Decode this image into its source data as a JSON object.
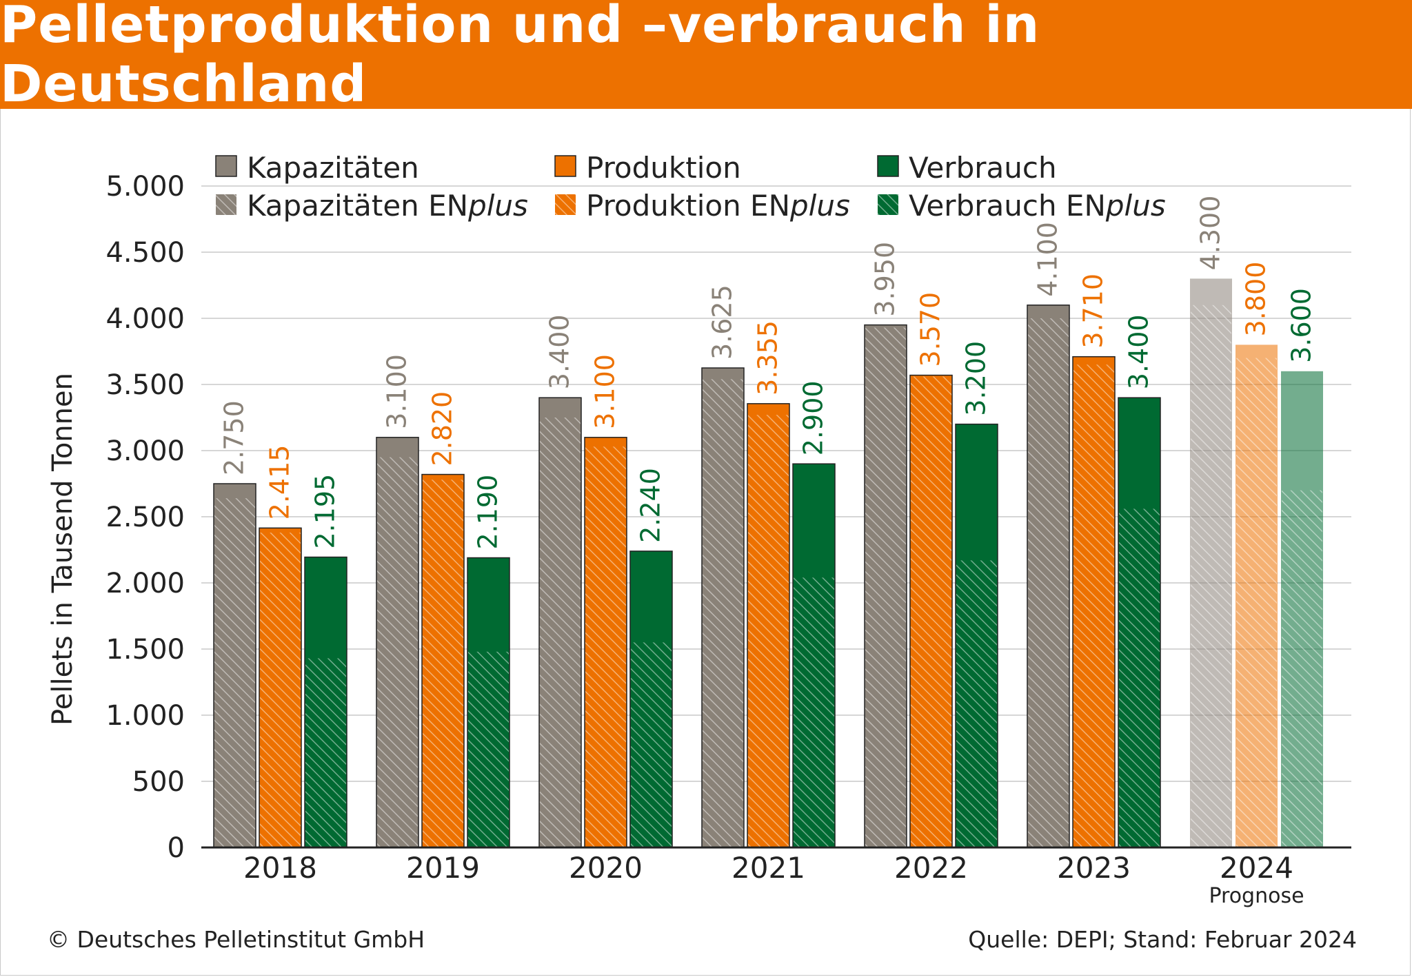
{
  "header": {
    "title": "Pelletproduktion und –verbrauch in Deutschland"
  },
  "footer": {
    "copyright": "© Deutsches Pelletinstitut GmbH",
    "source": "Quelle: DEPI; Stand: Februar 2024"
  },
  "colors": {
    "accent": "#ed7100",
    "kapazitaeten": "#8a8278",
    "produktion": "#ed7100",
    "verbrauch": "#006a32",
    "kapazitaeten_label": "#8a8278",
    "produktion_label": "#ed7100",
    "verbrauch_label": "#006a32"
  },
  "chart_data": {
    "type": "bar",
    "title": "Pelletproduktion und –verbrauch in Deutschland",
    "ylabel": "Pellets in Tausend Tonnen",
    "xlabel": "",
    "ylim": [
      0,
      5000
    ],
    "yticks": [
      0,
      500,
      1000,
      1500,
      2000,
      2500,
      3000,
      3500,
      4000,
      4500,
      5000
    ],
    "ytick_labels": [
      "0",
      "500",
      "1.000",
      "1.500",
      "2.000",
      "2.500",
      "3.000",
      "3.500",
      "4.000",
      "4.500",
      "5.000"
    ],
    "grid": true,
    "legend_position": "top",
    "categories": [
      "2018",
      "2019",
      "2020",
      "2021",
      "2022",
      "2023",
      "2024"
    ],
    "category_sublabels": [
      "",
      "",
      "",
      "",
      "",
      "",
      "Prognose"
    ],
    "forecast_category": "2024",
    "series": [
      {
        "name": "Kapazitäten",
        "enplus_name": "Kapazitäten ENplus",
        "enplus_name_base": "Kapazitäten EN",
        "enplus_name_italic": "plus",
        "values": [
          2750,
          3100,
          3400,
          3625,
          3950,
          4100,
          4300
        ],
        "labels": [
          "2.750",
          "3.100",
          "3.400",
          "3.625",
          "3.950",
          "4.100",
          "4.300"
        ],
        "enplus_values": [
          2640,
          2950,
          3250,
          3540,
          3930,
          4000,
          4100
        ]
      },
      {
        "name": "Produktion",
        "enplus_name": "Produktion ENplus",
        "enplus_name_base": "Produktion EN",
        "enplus_name_italic": "plus",
        "values": [
          2415,
          2820,
          3100,
          3355,
          3570,
          3710,
          3800
        ],
        "labels": [
          "2.415",
          "2.820",
          "3.100",
          "3.355",
          "3.570",
          "3.710",
          "3.800"
        ],
        "enplus_values": [
          2380,
          2780,
          3030,
          3270,
          3560,
          3650,
          3700
        ]
      },
      {
        "name": "Verbrauch",
        "enplus_name": "Verbrauch ENplus",
        "enplus_name_base": "Verbrauch EN",
        "enplus_name_italic": "plus",
        "values": [
          2195,
          2190,
          2240,
          2900,
          3200,
          3400,
          3600
        ],
        "labels": [
          "2.195",
          "2.190",
          "2.240",
          "2.900",
          "3.200",
          "3.400",
          "3.600"
        ],
        "enplus_values": [
          1430,
          1480,
          1550,
          2040,
          2170,
          2560,
          2700
        ]
      }
    ]
  }
}
